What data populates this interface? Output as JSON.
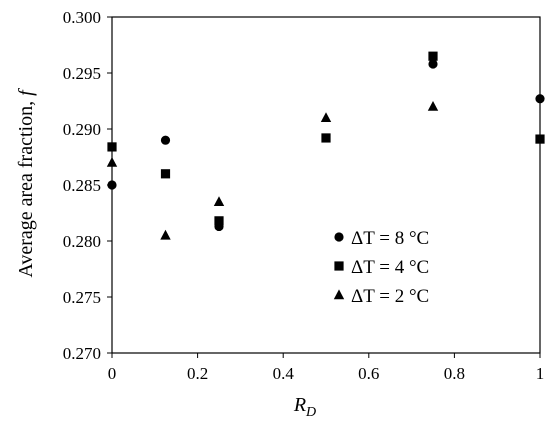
{
  "chart_data": {
    "type": "scatter",
    "title": "",
    "xlabel_main": "R",
    "xlabel_sub": "D",
    "ylabel_main": "Average area fraction, ",
    "ylabel_var": "f",
    "xlim": [
      0,
      1
    ],
    "ylim": [
      0.27,
      0.3
    ],
    "x_ticks": [
      0,
      0.2,
      0.4,
      0.6,
      0.8,
      1
    ],
    "x_tick_labels": [
      "0",
      "0.2",
      "0.4",
      "0.6",
      "0.8",
      "1"
    ],
    "y_ticks": [
      0.27,
      0.275,
      0.28,
      0.285,
      0.29,
      0.295,
      0.3
    ],
    "y_tick_labels": [
      "0.270",
      "0.275",
      "0.280",
      "0.285",
      "0.290",
      "0.295",
      "0.300"
    ],
    "grid": false,
    "legend_position": "lower-right inside",
    "series": [
      {
        "name": "ΔT = 8 °C",
        "marker": "circle",
        "color": "#000000",
        "x": [
          0,
          0.125,
          0.25,
          0.75,
          1
        ],
        "y": [
          0.285,
          0.289,
          0.2813,
          0.2958,
          0.2927
        ]
      },
      {
        "name": "ΔT = 4 °C",
        "marker": "square",
        "color": "#000000",
        "x": [
          0,
          0.125,
          0.25,
          0.5,
          0.75,
          1
        ],
        "y": [
          0.2884,
          0.286,
          0.2818,
          0.2892,
          0.2965,
          0.2891
        ]
      },
      {
        "name": "ΔT = 2 °C",
        "marker": "triangle",
        "color": "#000000",
        "x": [
          0,
          0.125,
          0.25,
          0.5,
          0.75
        ],
        "y": [
          0.287,
          0.2805,
          0.2835,
          0.291,
          0.292
        ]
      }
    ]
  }
}
